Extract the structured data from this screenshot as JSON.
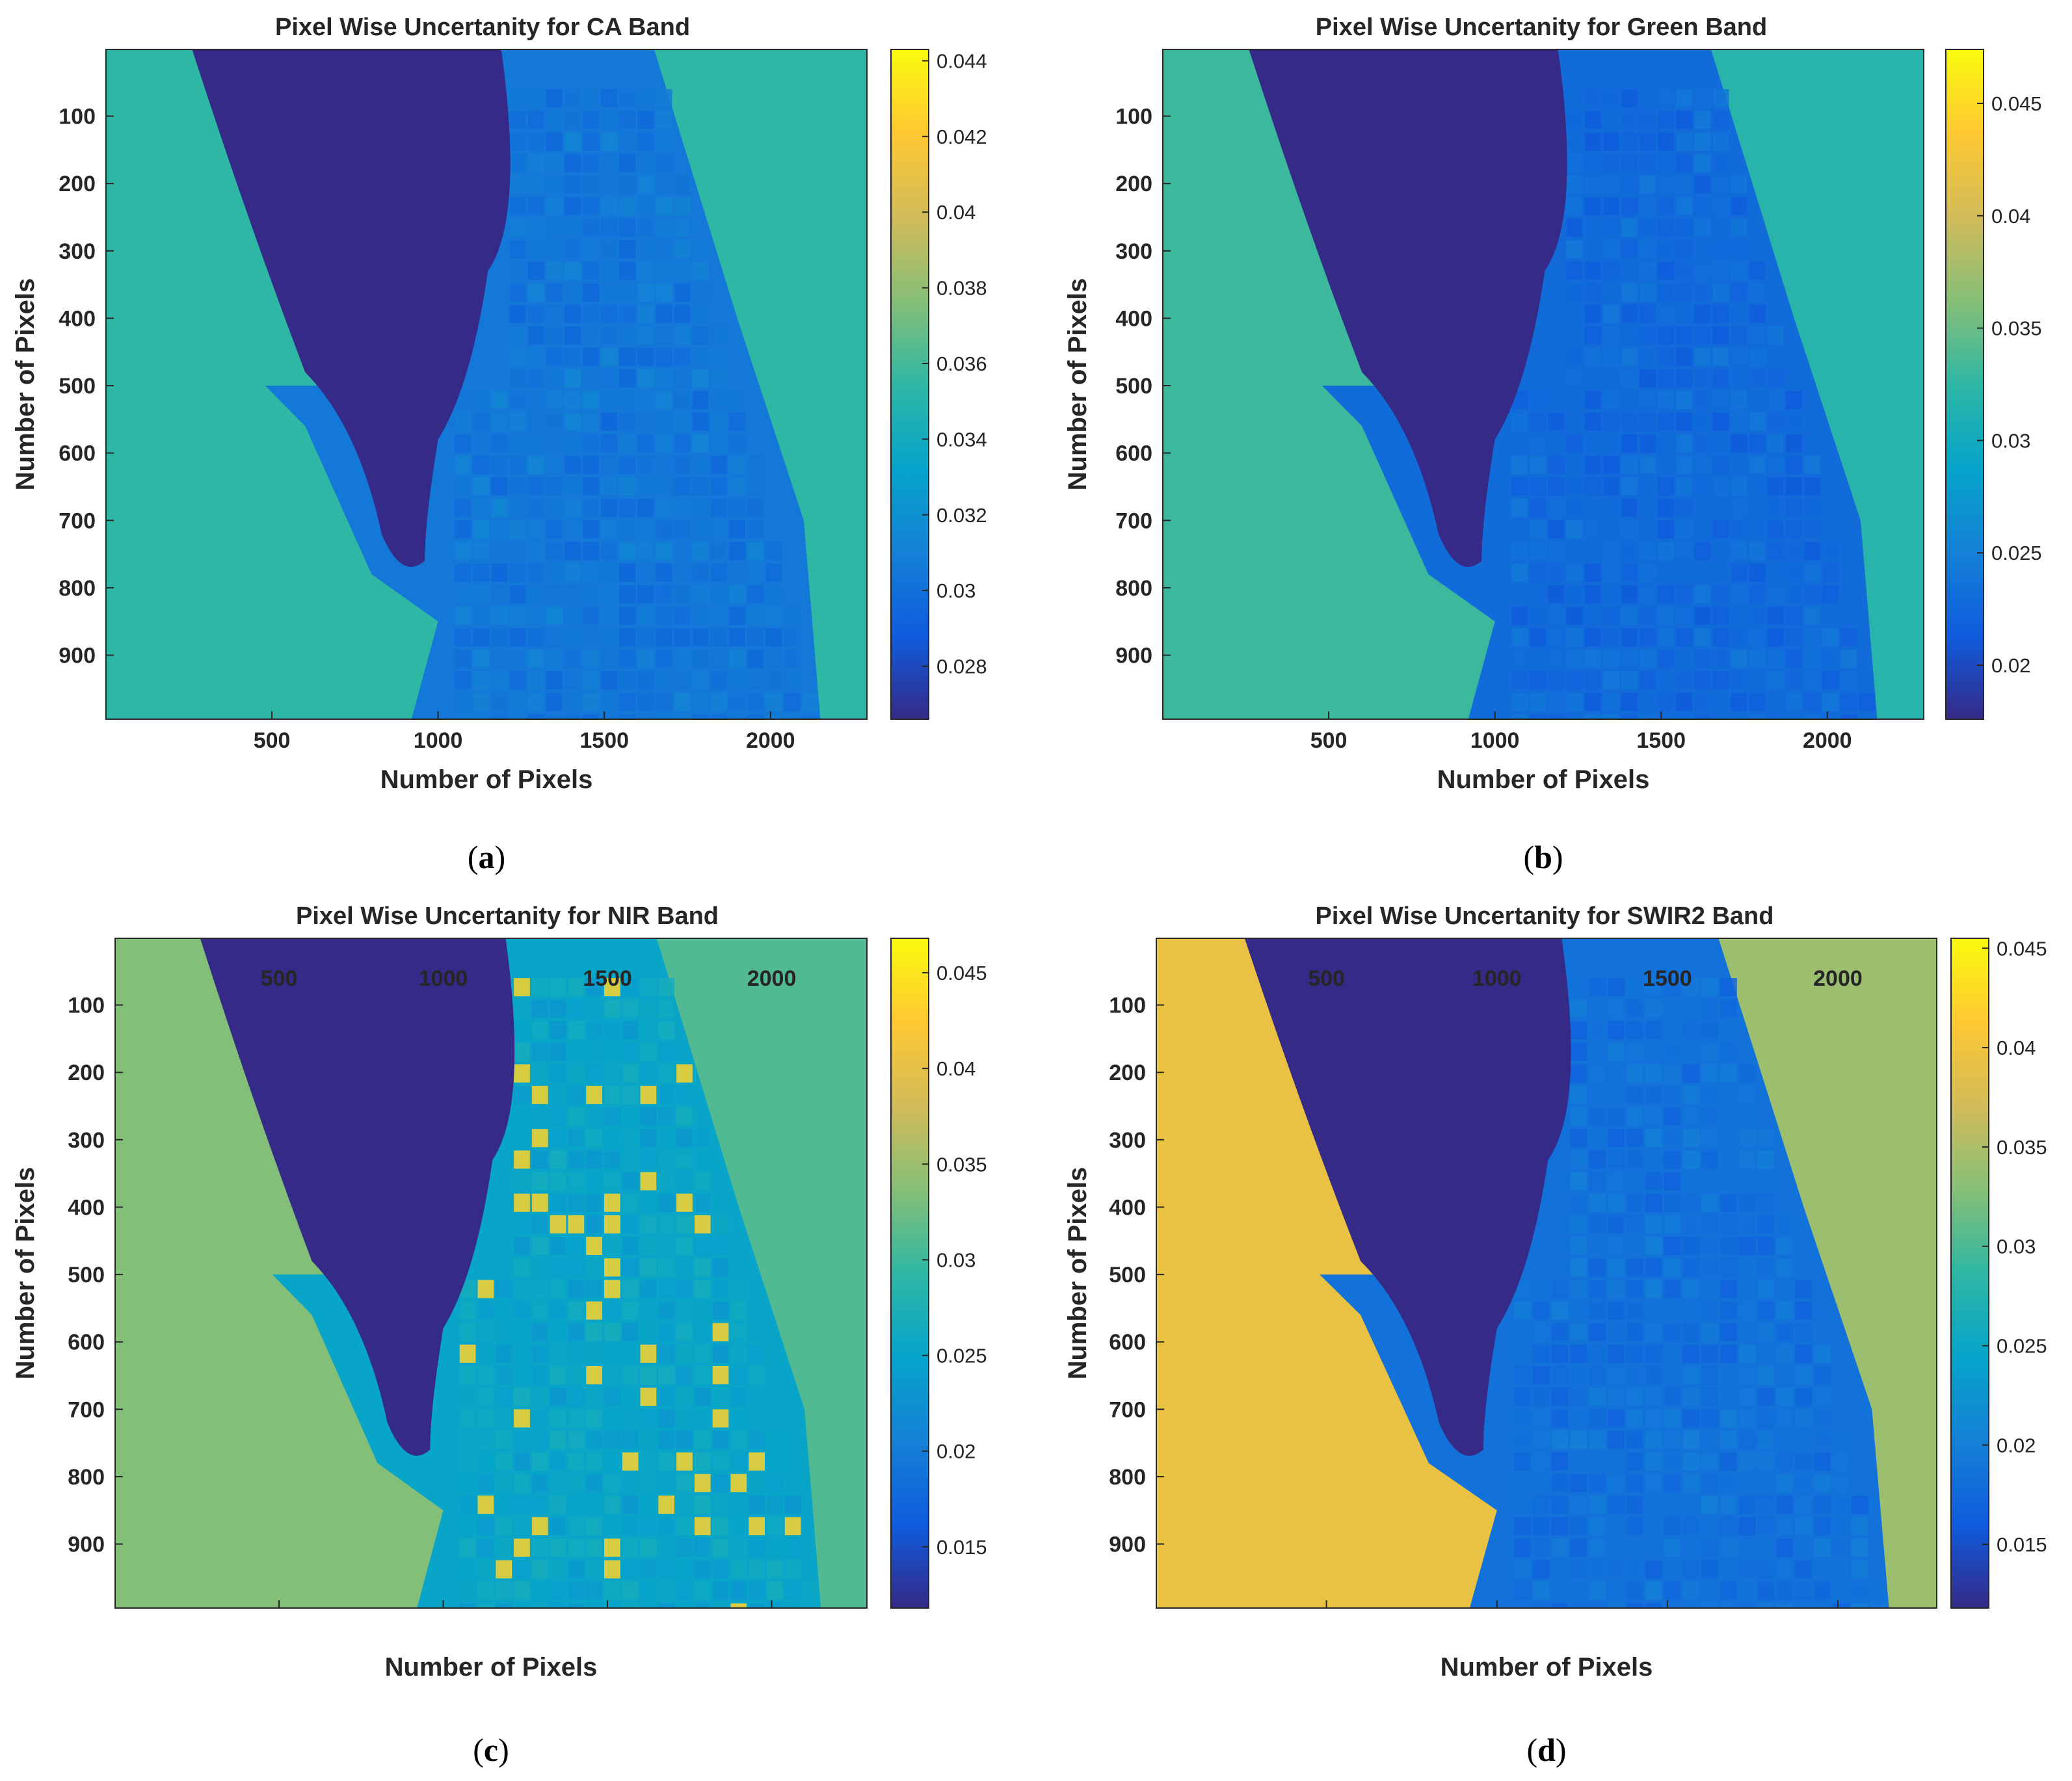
{
  "chart_data": [
    {
      "type": "heatmap",
      "panel_label": "a",
      "title": "Pixel Wise Uncertanity for CA Band",
      "xlabel": "Number of Pixels",
      "ylabel": "Number of Pixels",
      "x_ticks": [
        500,
        1000,
        1500,
        2000
      ],
      "y_ticks": [
        100,
        200,
        300,
        400,
        500,
        600,
        700,
        800,
        900
      ],
      "xlim": [
        1,
        2290
      ],
      "ylim": [
        1,
        995
      ],
      "y_reversed": true,
      "colormap": "parula",
      "colorbar_ticks": [
        0.028,
        0.03,
        0.032,
        0.034,
        0.036,
        0.038,
        0.04,
        0.042,
        0.044
      ],
      "clim": [
        0.0266,
        0.0443
      ],
      "region_levels": {
        "water": 0.0,
        "left_land": 0.5,
        "fields": 0.22,
        "right_land": 0.5,
        "bright_fields": 0.22
      },
      "grid": false
    },
    {
      "type": "heatmap",
      "panel_label": "b",
      "title": "Pixel Wise Uncertanity for Green Band",
      "xlabel": "Number of Pixels",
      "ylabel": "Number of Pixels",
      "x_ticks": [
        500,
        1000,
        1500,
        2000
      ],
      "y_ticks": [
        100,
        200,
        300,
        400,
        500,
        600,
        700,
        800,
        900
      ],
      "xlim": [
        1,
        2290
      ],
      "ylim": [
        1,
        995
      ],
      "y_reversed": true,
      "colormap": "parula",
      "colorbar_ticks": [
        0.02,
        0.025,
        0.03,
        0.035,
        0.04,
        0.045
      ],
      "clim": [
        0.0176,
        0.0474
      ],
      "region_levels": {
        "water": 0.0,
        "left_land": 0.52,
        "fields": 0.18,
        "right_land": 0.48,
        "bright_fields": 0.18
      },
      "grid": false
    },
    {
      "type": "heatmap",
      "panel_label": "c",
      "title": "Pixel Wise Uncertanity for NIR Band",
      "xlabel": "Number of Pixels",
      "ylabel": "Number of Pixels",
      "x_ticks": [
        500,
        1000,
        1500,
        2000
      ],
      "y_ticks": [
        100,
        200,
        300,
        400,
        500,
        600,
        700,
        800,
        900
      ],
      "xlim": [
        1,
        2290
      ],
      "ylim": [
        1,
        995
      ],
      "y_reversed": true,
      "colormap": "parula",
      "colorbar_ticks": [
        0.015,
        0.02,
        0.025,
        0.03,
        0.035,
        0.04,
        0.045
      ],
      "clim": [
        0.0118,
        0.0468
      ],
      "region_levels": {
        "water": 0.0,
        "left_land": 0.62,
        "fields": 0.38,
        "right_land": 0.55,
        "bright_fields": 0.9
      },
      "grid": false
    },
    {
      "type": "heatmap",
      "panel_label": "d",
      "title": "Pixel Wise Uncertanity for SWIR2 Band",
      "xlabel": "Number of Pixels",
      "ylabel": "Number of Pixels",
      "x_ticks": [
        500,
        1000,
        1500,
        2000
      ],
      "y_ticks": [
        100,
        200,
        300,
        400,
        500,
        600,
        700,
        800,
        900
      ],
      "xlim": [
        1,
        2290
      ],
      "ylim": [
        1,
        995
      ],
      "y_reversed": true,
      "colormap": "parula",
      "colorbar_ticks": [
        0.015,
        0.02,
        0.025,
        0.03,
        0.035,
        0.04,
        0.045
      ],
      "clim": [
        0.0118,
        0.0455
      ],
      "region_levels": {
        "water": 0.0,
        "left_land": 0.82,
        "fields": 0.2,
        "right_land": 0.66,
        "bright_fields": 0.2
      },
      "grid": false
    }
  ],
  "captions": [
    "(a)",
    "(b)",
    "(c)",
    "(d)"
  ],
  "colors": {
    "parula": [
      "#352a87",
      "#0f5cdd",
      "#1481d6",
      "#06a4ca",
      "#2eb7a4",
      "#87bf77",
      "#d1bb59",
      "#fec832",
      "#f9fb0e"
    ]
  }
}
